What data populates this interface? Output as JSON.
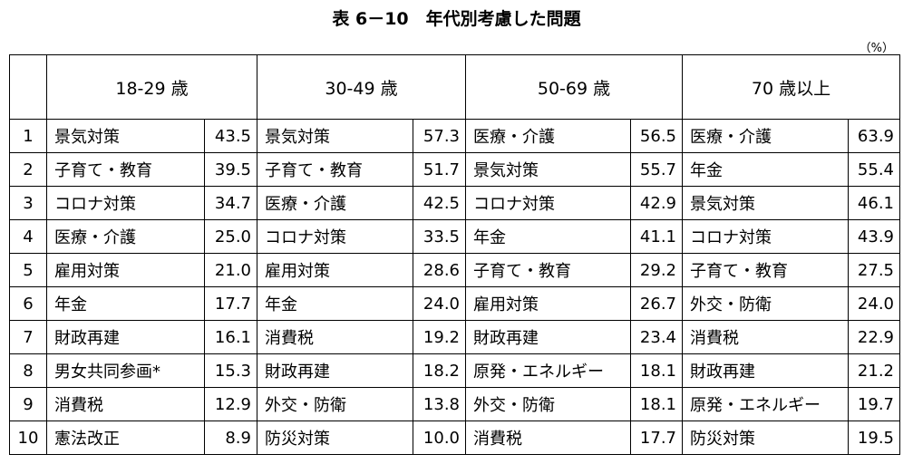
{
  "title": "表 6－10　年代別考慮した問題",
  "unit": "（%）",
  "columns": [
    "18-29 歳",
    "30-49 歳",
    "50-69 歳",
    "70 歳以上"
  ],
  "rows": [
    {
      "rank": "1",
      "cells": [
        [
          "景気対策",
          "43.5"
        ],
        [
          "景気対策",
          "57.3"
        ],
        [
          "医療・介護",
          "56.5"
        ],
        [
          "医療・介護",
          "63.9"
        ]
      ]
    },
    {
      "rank": "2",
      "cells": [
        [
          "子育て・教育",
          "39.5"
        ],
        [
          "子育て・教育",
          "51.7"
        ],
        [
          "景気対策",
          "55.7"
        ],
        [
          "年金",
          "55.4"
        ]
      ]
    },
    {
      "rank": "3",
      "cells": [
        [
          "コロナ対策",
          "34.7"
        ],
        [
          "医療・介護",
          "42.5"
        ],
        [
          "コロナ対策",
          "42.9"
        ],
        [
          "景気対策",
          "46.1"
        ]
      ]
    },
    {
      "rank": "4",
      "cells": [
        [
          "医療・介護",
          "25.0"
        ],
        [
          "コロナ対策",
          "33.5"
        ],
        [
          "年金",
          "41.1"
        ],
        [
          "コロナ対策",
          "43.9"
        ]
      ]
    },
    {
      "rank": "5",
      "cells": [
        [
          "雇用対策",
          "21.0"
        ],
        [
          "雇用対策",
          "28.6"
        ],
        [
          "子育て・教育",
          "29.2"
        ],
        [
          "子育て・教育",
          "27.5"
        ]
      ]
    },
    {
      "rank": "6",
      "cells": [
        [
          "年金",
          "17.7"
        ],
        [
          "年金",
          "24.0"
        ],
        [
          "雇用対策",
          "26.7"
        ],
        [
          "外交・防衛",
          "24.0"
        ]
      ]
    },
    {
      "rank": "7",
      "cells": [
        [
          "財政再建",
          "16.1"
        ],
        [
          "消費税",
          "19.2"
        ],
        [
          "財政再建",
          "23.4"
        ],
        [
          "消費税",
          "22.9"
        ]
      ]
    },
    {
      "rank": "8",
      "cells": [
        [
          "男女共同参画*",
          "15.3"
        ],
        [
          "財政再建",
          "18.2"
        ],
        [
          "原発・エネルギー",
          "18.1"
        ],
        [
          "財政再建",
          "21.2"
        ]
      ]
    },
    {
      "rank": "9",
      "cells": [
        [
          "消費税",
          "12.9"
        ],
        [
          "外交・防衛",
          "13.8"
        ],
        [
          "外交・防衛",
          "18.1"
        ],
        [
          "原発・エネルギー",
          "19.7"
        ]
      ]
    },
    {
      "rank": "10",
      "cells": [
        [
          "憲法改正",
          "8.9"
        ],
        [
          "防災対策",
          "10.0"
        ],
        [
          "消費税",
          "17.7"
        ],
        [
          "防災対策",
          "19.5"
        ]
      ]
    }
  ]
}
